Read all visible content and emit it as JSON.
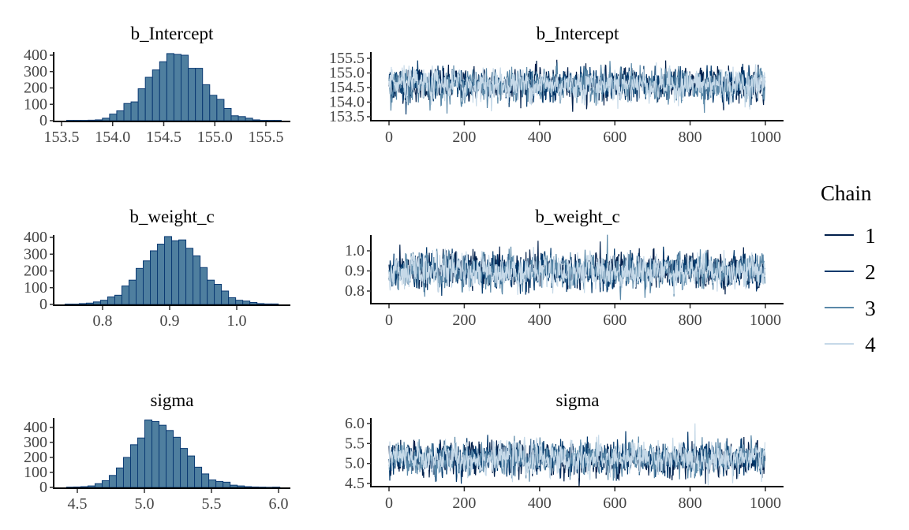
{
  "chart_data": {
    "type": "mcmc_hist_trace",
    "colors": {
      "hist_fill": "#4f7f9f",
      "hist_edge": "#0b3a73",
      "chains": [
        "#011f4b",
        "#03396c",
        "#5a88a8",
        "#c6d9e8"
      ]
    },
    "legend": {
      "title": "Chain",
      "placement": "right",
      "entries": [
        "1",
        "2",
        "3",
        "4"
      ]
    },
    "panels": [
      {
        "parameter": "b_Intercept",
        "hist": {
          "bin_start": 153.55,
          "bin_width": 0.07,
          "counts": [
            2,
            2,
            2,
            3,
            5,
            15,
            40,
            60,
            105,
            115,
            195,
            265,
            310,
            360,
            410,
            405,
            400,
            320,
            320,
            220,
            155,
            130,
            75,
            30,
            25,
            15,
            5,
            2,
            2,
            2
          ],
          "xticks": [
            "153.5",
            "154.0",
            "154.5",
            "155.0",
            "155.5"
          ],
          "xtick_values": [
            153.5,
            154.0,
            154.5,
            155.0,
            155.5
          ],
          "yticks": [
            "0",
            "100",
            "200",
            "300",
            "400"
          ],
          "ytick_values": [
            0,
            100,
            200,
            300,
            400
          ]
        },
        "trace": {
          "iterations": 1000,
          "chain_means": [
            154.62,
            154.6,
            154.58,
            154.6
          ],
          "chain_sd": 0.27,
          "xticks": [
            "0",
            "200",
            "400",
            "600",
            "800",
            "1000"
          ],
          "xtick_values": [
            0,
            200,
            400,
            600,
            800,
            1000
          ],
          "yticks": [
            "153.5",
            "154.0",
            "154.5",
            "155.0",
            "155.5"
          ],
          "ytick_values": [
            153.5,
            154.0,
            154.5,
            155.0,
            155.5
          ]
        }
      },
      {
        "parameter": "b_weight_c",
        "hist": {
          "bin_start": 0.744,
          "bin_width": 0.0106,
          "counts": [
            2,
            2,
            5,
            8,
            15,
            25,
            45,
            55,
            110,
            145,
            215,
            260,
            320,
            360,
            405,
            380,
            385,
            335,
            290,
            220,
            145,
            120,
            80,
            40,
            25,
            20,
            12,
            5,
            3,
            3
          ],
          "xticks": [
            "0.8",
            "0.9",
            "1.0"
          ],
          "xtick_values": [
            0.8,
            0.9,
            1.0
          ],
          "yticks": [
            "0",
            "100",
            "200",
            "300",
            "400"
          ],
          "ytick_values": [
            0,
            100,
            200,
            300,
            400
          ]
        },
        "trace": {
          "iterations": 1000,
          "chain_means": [
            0.905,
            0.9,
            0.895,
            0.9
          ],
          "chain_sd": 0.042,
          "xticks": [
            "0",
            "200",
            "400",
            "600",
            "800",
            "1000"
          ],
          "xtick_values": [
            0,
            200,
            400,
            600,
            800,
            1000
          ],
          "yticks": [
            "0.8",
            "0.9",
            "1.0"
          ],
          "ytick_values": [
            0.8,
            0.9,
            1.0
          ]
        }
      },
      {
        "parameter": "sigma",
        "hist": {
          "bin_start": 4.42,
          "bin_width": 0.053,
          "counts": [
            2,
            3,
            5,
            10,
            25,
            45,
            80,
            130,
            200,
            285,
            330,
            450,
            440,
            415,
            380,
            335,
            260,
            210,
            135,
            90,
            50,
            40,
            35,
            15,
            10,
            5,
            3,
            2,
            1,
            2
          ],
          "xticks": [
            "4.5",
            "5.0",
            "5.5",
            "6.0"
          ],
          "xtick_values": [
            4.5,
            5.0,
            5.5,
            6.0
          ],
          "yticks": [
            "0",
            "100",
            "200",
            "300",
            "400"
          ],
          "ytick_values": [
            0,
            100,
            200,
            300,
            400
          ]
        },
        "trace": {
          "iterations": 1000,
          "chain_means": [
            5.1,
            5.12,
            5.13,
            5.12
          ],
          "chain_sd": 0.2,
          "xticks": [
            "0",
            "200",
            "400",
            "600",
            "800",
            "1000"
          ],
          "xtick_values": [
            0,
            200,
            400,
            600,
            800,
            1000
          ],
          "yticks": [
            "4.5",
            "5.0",
            "5.5",
            "6.0"
          ],
          "ytick_values": [
            4.5,
            5.0,
            5.5,
            6.0
          ]
        }
      }
    ]
  }
}
